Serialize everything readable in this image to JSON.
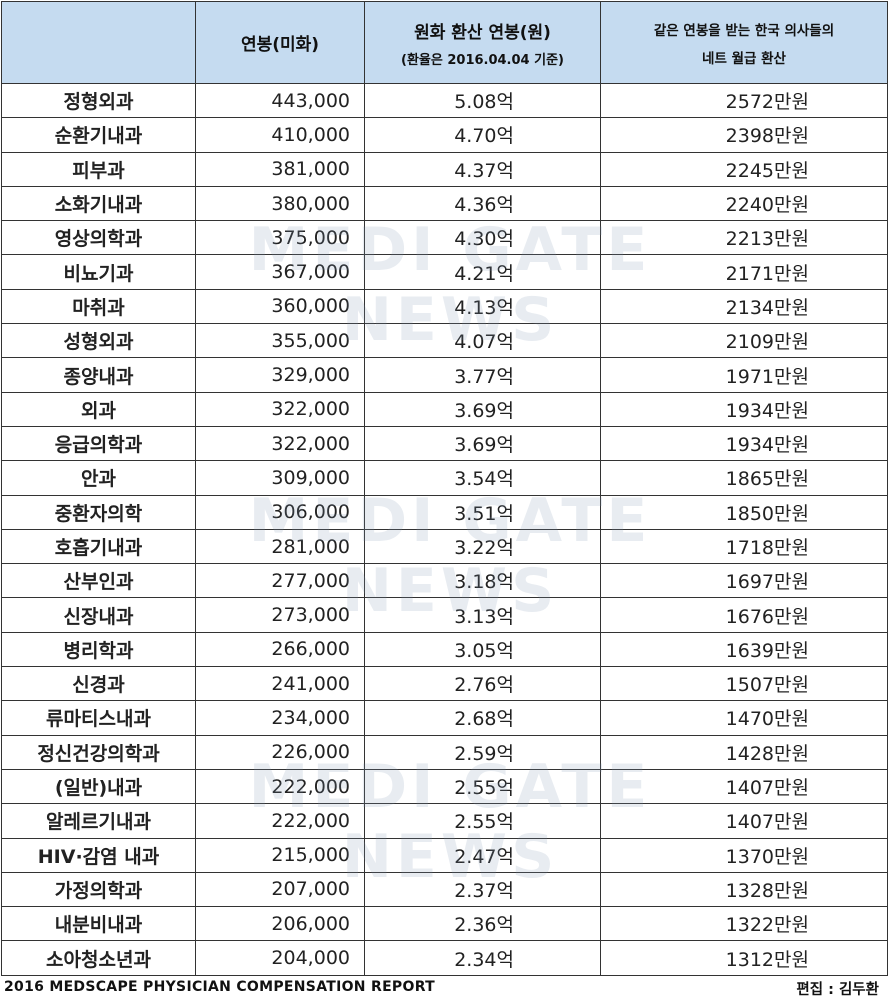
{
  "header": {
    "col_specialty": "",
    "col_usd": "연봉(미화)",
    "col_krw": "원화 환산 연봉(원)",
    "col_krw_note": "(환율은 2016.04.04 기준)",
    "col_monthly_line1": "같은 연봉을 받는 한국 의사들의",
    "col_monthly_line2": "네트 월급 환산"
  },
  "rows": [
    {
      "specialty": "정형외과",
      "usd": "443,000",
      "krw": "5.08억",
      "monthly": "2572만원"
    },
    {
      "specialty": "순환기내과",
      "usd": "410,000",
      "krw": "4.70억",
      "monthly": "2398만원"
    },
    {
      "specialty": "피부과",
      "usd": "381,000",
      "krw": "4.37억",
      "monthly": "2245만원"
    },
    {
      "specialty": "소화기내과",
      "usd": "380,000",
      "krw": "4.36억",
      "monthly": "2240만원"
    },
    {
      "specialty": "영상의학과",
      "usd": "375,000",
      "krw": "4.30억",
      "monthly": "2213만원"
    },
    {
      "specialty": "비뇨기과",
      "usd": "367,000",
      "krw": "4.21억",
      "monthly": "2171만원"
    },
    {
      "specialty": "마취과",
      "usd": "360,000",
      "krw": "4.13억",
      "monthly": "2134만원"
    },
    {
      "specialty": "성형외과",
      "usd": "355,000",
      "krw": "4.07억",
      "monthly": "2109만원"
    },
    {
      "specialty": "종양내과",
      "usd": "329,000",
      "krw": "3.77억",
      "monthly": "1971만원"
    },
    {
      "specialty": "외과",
      "usd": "322,000",
      "krw": "3.69억",
      "monthly": "1934만원"
    },
    {
      "specialty": "응급의학과",
      "usd": "322,000",
      "krw": "3.69억",
      "monthly": "1934만원"
    },
    {
      "specialty": "안과",
      "usd": "309,000",
      "krw": "3.54억",
      "monthly": "1865만원"
    },
    {
      "specialty": "중환자의학",
      "usd": "306,000",
      "krw": "3.51억",
      "monthly": "1850만원"
    },
    {
      "specialty": "호흡기내과",
      "usd": "281,000",
      "krw": "3.22억",
      "monthly": "1718만원"
    },
    {
      "specialty": "산부인과",
      "usd": "277,000",
      "krw": "3.18억",
      "monthly": "1697만원"
    },
    {
      "specialty": "신장내과",
      "usd": "273,000",
      "krw": "3.13억",
      "monthly": "1676만원"
    },
    {
      "specialty": "병리학과",
      "usd": "266,000",
      "krw": "3.05억",
      "monthly": "1639만원"
    },
    {
      "specialty": "신경과",
      "usd": "241,000",
      "krw": "2.76억",
      "monthly": "1507만원"
    },
    {
      "specialty": "류마티스내과",
      "usd": "234,000",
      "krw": "2.68억",
      "monthly": "1470만원"
    },
    {
      "specialty": "정신건강의학과",
      "usd": "226,000",
      "krw": "2.59억",
      "monthly": "1428만원"
    },
    {
      "specialty": "(일반)내과",
      "usd": "222,000",
      "krw": "2.55억",
      "monthly": "1407만원"
    },
    {
      "specialty": "알레르기내과",
      "usd": "222,000",
      "krw": "2.55억",
      "monthly": "1407만원"
    },
    {
      "specialty": "HIV·감염 내과",
      "usd": "215,000",
      "krw": "2.47억",
      "monthly": "1370만원"
    },
    {
      "specialty": "가정의학과",
      "usd": "207,000",
      "krw": "2.37억",
      "monthly": "1328만원"
    },
    {
      "specialty": "내분비내과",
      "usd": "206,000",
      "krw": "2.36억",
      "monthly": "1322만원"
    },
    {
      "specialty": "소아청소년과",
      "usd": "204,000",
      "krw": "2.34억",
      "monthly": "1312만원"
    }
  ],
  "footer": {
    "source": "2016 MEDSCAPE PHYSICIAN COMPENSATION REPORT",
    "editor": "편집 : 김두환"
  },
  "watermark": "MEDI GATE NEWS"
}
